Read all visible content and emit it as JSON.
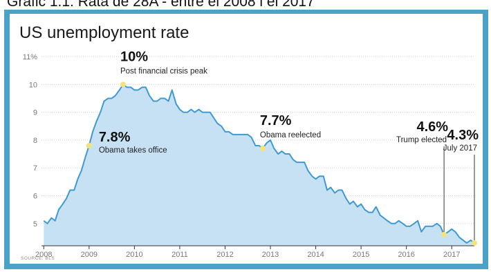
{
  "caption": "Grafic 1.1: Rata de 28A - entre el 2008 i el 2017",
  "chart_data": {
    "type": "area",
    "title": "US unemployment rate",
    "source": "SOURCE: BLS",
    "xlabel": "",
    "ylabel": "",
    "y_ticks": [
      "5",
      "6",
      "7",
      "8",
      "9",
      "10",
      "11%"
    ],
    "y_tick_values": [
      5,
      6,
      7,
      8,
      9,
      10,
      11
    ],
    "ylim": [
      4.2,
      11.2
    ],
    "x_ticks": [
      "2008",
      "2009",
      "2010",
      "2011",
      "2012",
      "2013",
      "2014",
      "2015",
      "2016",
      "2017"
    ],
    "x_tick_values": [
      2008,
      2009,
      2010,
      2011,
      2012,
      2013,
      2014,
      2015,
      2016,
      2017
    ],
    "xlim": [
      2007.95,
      2017.5
    ],
    "grid": true,
    "colors": {
      "line": "#3d9ad1",
      "fill": "#c7e1f4",
      "marker": "#f5e27a",
      "grid": "#cfcfcf"
    },
    "series": [
      {
        "values": [
          {
            "x": 2008.0,
            "y": 5.1
          },
          {
            "x": 2008.08,
            "y": 5.0
          },
          {
            "x": 2008.17,
            "y": 5.2
          },
          {
            "x": 2008.25,
            "y": 5.1
          },
          {
            "x": 2008.33,
            "y": 5.5
          },
          {
            "x": 2008.42,
            "y": 5.7
          },
          {
            "x": 2008.5,
            "y": 5.9
          },
          {
            "x": 2008.58,
            "y": 6.2
          },
          {
            "x": 2008.67,
            "y": 6.2
          },
          {
            "x": 2008.75,
            "y": 6.6
          },
          {
            "x": 2008.83,
            "y": 6.9
          },
          {
            "x": 2008.92,
            "y": 7.4
          },
          {
            "x": 2009.0,
            "y": 7.8
          },
          {
            "x": 2009.08,
            "y": 8.3
          },
          {
            "x": 2009.17,
            "y": 8.7
          },
          {
            "x": 2009.25,
            "y": 9.0
          },
          {
            "x": 2009.33,
            "y": 9.4
          },
          {
            "x": 2009.42,
            "y": 9.5
          },
          {
            "x": 2009.5,
            "y": 9.5
          },
          {
            "x": 2009.58,
            "y": 9.6
          },
          {
            "x": 2009.67,
            "y": 9.8
          },
          {
            "x": 2009.75,
            "y": 10.0
          },
          {
            "x": 2009.83,
            "y": 9.9
          },
          {
            "x": 2009.92,
            "y": 9.9
          },
          {
            "x": 2010.0,
            "y": 9.8
          },
          {
            "x": 2010.08,
            "y": 9.8
          },
          {
            "x": 2010.17,
            "y": 9.9
          },
          {
            "x": 2010.25,
            "y": 9.9
          },
          {
            "x": 2010.33,
            "y": 9.6
          },
          {
            "x": 2010.42,
            "y": 9.4
          },
          {
            "x": 2010.5,
            "y": 9.4
          },
          {
            "x": 2010.58,
            "y": 9.5
          },
          {
            "x": 2010.67,
            "y": 9.5
          },
          {
            "x": 2010.75,
            "y": 9.4
          },
          {
            "x": 2010.83,
            "y": 9.8
          },
          {
            "x": 2010.92,
            "y": 9.3
          },
          {
            "x": 2011.0,
            "y": 9.1
          },
          {
            "x": 2011.08,
            "y": 9.0
          },
          {
            "x": 2011.17,
            "y": 9.0
          },
          {
            "x": 2011.25,
            "y": 9.1
          },
          {
            "x": 2011.33,
            "y": 9.0
          },
          {
            "x": 2011.42,
            "y": 9.1
          },
          {
            "x": 2011.5,
            "y": 9.0
          },
          {
            "x": 2011.58,
            "y": 9.0
          },
          {
            "x": 2011.67,
            "y": 9.0
          },
          {
            "x": 2011.75,
            "y": 8.8
          },
          {
            "x": 2011.83,
            "y": 8.6
          },
          {
            "x": 2011.92,
            "y": 8.5
          },
          {
            "x": 2012.0,
            "y": 8.3
          },
          {
            "x": 2012.08,
            "y": 8.3
          },
          {
            "x": 2012.17,
            "y": 8.2
          },
          {
            "x": 2012.25,
            "y": 8.2
          },
          {
            "x": 2012.33,
            "y": 8.2
          },
          {
            "x": 2012.42,
            "y": 8.2
          },
          {
            "x": 2012.5,
            "y": 8.2
          },
          {
            "x": 2012.58,
            "y": 8.1
          },
          {
            "x": 2012.67,
            "y": 7.8
          },
          {
            "x": 2012.75,
            "y": 7.8
          },
          {
            "x": 2012.83,
            "y": 7.7
          },
          {
            "x": 2012.92,
            "y": 7.9
          },
          {
            "x": 2013.0,
            "y": 8.0
          },
          {
            "x": 2013.08,
            "y": 7.7
          },
          {
            "x": 2013.17,
            "y": 7.5
          },
          {
            "x": 2013.25,
            "y": 7.6
          },
          {
            "x": 2013.33,
            "y": 7.5
          },
          {
            "x": 2013.42,
            "y": 7.5
          },
          {
            "x": 2013.5,
            "y": 7.3
          },
          {
            "x": 2013.58,
            "y": 7.2
          },
          {
            "x": 2013.67,
            "y": 7.2
          },
          {
            "x": 2013.75,
            "y": 7.2
          },
          {
            "x": 2013.83,
            "y": 6.9
          },
          {
            "x": 2013.92,
            "y": 6.7
          },
          {
            "x": 2014.0,
            "y": 6.6
          },
          {
            "x": 2014.08,
            "y": 6.7
          },
          {
            "x": 2014.17,
            "y": 6.7
          },
          {
            "x": 2014.25,
            "y": 6.2
          },
          {
            "x": 2014.33,
            "y": 6.3
          },
          {
            "x": 2014.42,
            "y": 6.1
          },
          {
            "x": 2014.5,
            "y": 6.2
          },
          {
            "x": 2014.58,
            "y": 6.2
          },
          {
            "x": 2014.67,
            "y": 5.9
          },
          {
            "x": 2014.75,
            "y": 5.7
          },
          {
            "x": 2014.83,
            "y": 5.8
          },
          {
            "x": 2014.92,
            "y": 5.6
          },
          {
            "x": 2015.0,
            "y": 5.7
          },
          {
            "x": 2015.08,
            "y": 5.5
          },
          {
            "x": 2015.17,
            "y": 5.4
          },
          {
            "x": 2015.25,
            "y": 5.4
          },
          {
            "x": 2015.33,
            "y": 5.6
          },
          {
            "x": 2015.42,
            "y": 5.3
          },
          {
            "x": 2015.5,
            "y": 5.2
          },
          {
            "x": 2015.58,
            "y": 5.1
          },
          {
            "x": 2015.67,
            "y": 5.0
          },
          {
            "x": 2015.75,
            "y": 5.0
          },
          {
            "x": 2015.83,
            "y": 5.1
          },
          {
            "x": 2015.92,
            "y": 5.0
          },
          {
            "x": 2016.0,
            "y": 4.9
          },
          {
            "x": 2016.08,
            "y": 4.9
          },
          {
            "x": 2016.17,
            "y": 5.0
          },
          {
            "x": 2016.25,
            "y": 5.1
          },
          {
            "x": 2016.33,
            "y": 4.7
          },
          {
            "x": 2016.42,
            "y": 4.9
          },
          {
            "x": 2016.5,
            "y": 4.9
          },
          {
            "x": 2016.58,
            "y": 4.9
          },
          {
            "x": 2016.67,
            "y": 5.0
          },
          {
            "x": 2016.75,
            "y": 4.9
          },
          {
            "x": 2016.83,
            "y": 4.6
          },
          {
            "x": 2016.92,
            "y": 4.7
          },
          {
            "x": 2017.0,
            "y": 4.8
          },
          {
            "x": 2017.08,
            "y": 4.7
          },
          {
            "x": 2017.17,
            "y": 4.5
          },
          {
            "x": 2017.25,
            "y": 4.4
          },
          {
            "x": 2017.33,
            "y": 4.3
          },
          {
            "x": 2017.42,
            "y": 4.4
          },
          {
            "x": 2017.5,
            "y": 4.3
          }
        ]
      }
    ],
    "annotations": [
      {
        "x": 2009.0,
        "y": 7.8,
        "value": "7.8%",
        "label": "Obama takes office",
        "anchor": "right"
      },
      {
        "x": 2009.75,
        "y": 10.0,
        "value": "10%",
        "label": "Post financial crisis peak",
        "anchor": "above"
      },
      {
        "x": 2012.83,
        "y": 7.7,
        "value": "7.7%",
        "label": "Obama reelected",
        "anchor": "above"
      },
      {
        "x": 2016.83,
        "y": 4.6,
        "value": "4.6%",
        "label": "Trump elected",
        "anchor": "above-left"
      },
      {
        "x": 2017.5,
        "y": 4.3,
        "value": "4.3%",
        "label": "July 2017",
        "anchor": "above-left"
      }
    ]
  }
}
